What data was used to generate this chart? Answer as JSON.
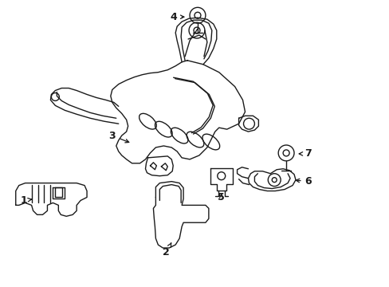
{
  "background_color": "#ffffff",
  "line_color": "#1a1a1a",
  "line_width": 1.0,
  "label_fontsize": 9,
  "figsize": [
    4.89,
    3.6
  ],
  "dpi": 100
}
